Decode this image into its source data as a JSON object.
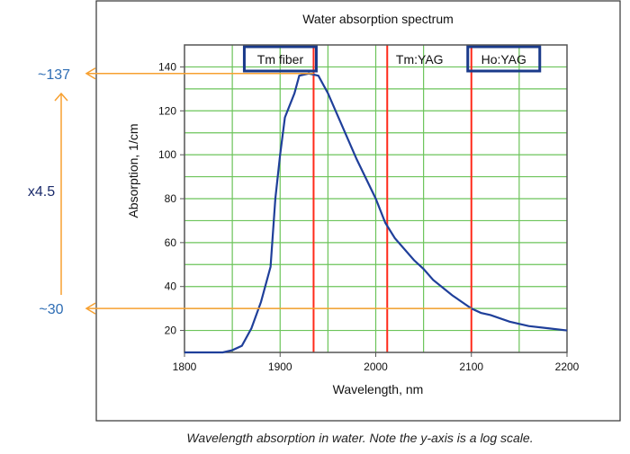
{
  "chart_data": {
    "type": "line",
    "title": "Water absorption spectrum",
    "xlabel": "Wavelength, nm",
    "ylabel": "Absorption, 1/cm",
    "xlim": [
      1800,
      2200
    ],
    "ylim": [
      10,
      150
    ],
    "xticks": [
      1800,
      1900,
      2000,
      2100,
      2200
    ],
    "yticks": [
      20,
      40,
      60,
      80,
      100,
      120,
      140
    ],
    "grid": true,
    "series": [
      {
        "color": "#1f3f9a",
        "x": [
          1800,
          1840,
          1850,
          1860,
          1870,
          1880,
          1890,
          1895,
          1900,
          1905,
          1915,
          1920,
          1930,
          1940,
          1950,
          1960,
          1980,
          2000,
          2010,
          2020,
          2040,
          2050,
          2060,
          2080,
          2100,
          2110,
          2120,
          2140,
          2160,
          2180,
          2200
        ],
        "y": [
          10,
          10,
          11,
          13,
          21,
          33,
          49,
          80,
          100,
          117,
          128,
          136,
          137,
          136,
          128,
          118,
          98,
          80,
          69,
          62,
          52,
          48,
          43,
          36,
          30,
          28,
          27,
          24,
          22,
          21,
          20
        ]
      }
    ],
    "markers": [
      {
        "label": "Tm fiber",
        "x": 1935,
        "boxed": true
      },
      {
        "label": "Tm:YAG",
        "x": 2012,
        "boxed": false
      },
      {
        "label": "Ho:YAG",
        "x": 2100,
        "boxed": true
      }
    ],
    "marker_color": "#ff2a1a",
    "annotations": {
      "high_label": "~137",
      "high_value": 137,
      "low_label": "~30",
      "low_value": 30,
      "ratio_label": "x4.5",
      "arrow_color": "#f7a030"
    }
  },
  "caption": "Wavelength absorption in water. Note the y-axis is a log scale."
}
